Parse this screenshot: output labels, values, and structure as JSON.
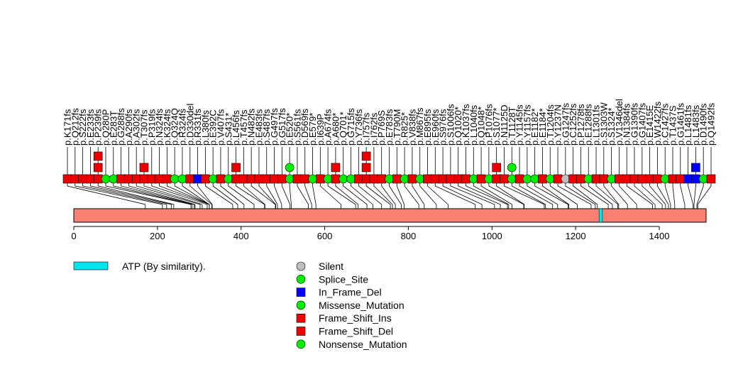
{
  "chart_data": {
    "type": "lollipop",
    "xlim": [
      0,
      1512
    ],
    "x_ticks": [
      0,
      200,
      400,
      600,
      800,
      1000,
      1200,
      1400
    ],
    "protein_length": 1512,
    "domains": [
      {
        "name": "ATP (By similarity).",
        "start": 1256,
        "end": 1264,
        "color": "#00e5ee"
      }
    ],
    "legend": [
      {
        "label": "ATP (By similarity).",
        "kind": "domain",
        "color": "#00e5ee"
      },
      {
        "label": "Silent",
        "kind": "circle",
        "color": "#bebebe"
      },
      {
        "label": "Splice_Site",
        "kind": "circle",
        "color": "#00ee00"
      },
      {
        "label": "In_Frame_Del",
        "kind": "square",
        "color": "#0000ff"
      },
      {
        "label": "Missense_Mutation",
        "kind": "circle",
        "color": "#00ee00"
      },
      {
        "label": "Frame_Shift_Ins",
        "kind": "square",
        "color": "#ee0000"
      },
      {
        "label": "Frame_Shift_Del",
        "kind": "square",
        "color": "#ee0000"
      },
      {
        "label": "Nonsense_Mutation",
        "kind": "circle",
        "color": "#00ee00"
      }
    ],
    "type_colors": {
      "Silent": "#bebebe",
      "Splice_Site": "#00ee00",
      "In_Frame_Del": "#0000ff",
      "Missense_Mutation": "#00ee00",
      "Frame_Shift_Ins": "#ee0000",
      "Frame_Shift_Del": "#ee0000",
      "Nonsense_Mutation": "#00ee00"
    },
    "mutations": [
      {
        "label": "p.K171fs",
        "pos": 171,
        "marks": [
          "Frame_Shift_Del"
        ]
      },
      {
        "label": "p.Q212fs",
        "pos": 212,
        "marks": [
          "Frame_Shift_Del"
        ]
      },
      {
        "label": "p.S222fs",
        "pos": 222,
        "marks": [
          "Frame_Shift_Del"
        ]
      },
      {
        "label": "p.E233fs",
        "pos": 233,
        "marks": [
          "Frame_Shift_Del"
        ]
      },
      {
        "label": "p.P239fs",
        "pos": 239,
        "marks": [
          "Frame_Shift_Del",
          "Frame_Shift_Ins",
          "Frame_Shift_Ins"
        ]
      },
      {
        "label": "p.Q280P",
        "pos": 280,
        "marks": [
          "Missense_Mutation"
        ]
      },
      {
        "label": "p.E283T",
        "pos": 283,
        "marks": [
          "Missense_Mutation"
        ]
      },
      {
        "label": "p.G288fs",
        "pos": 288,
        "marks": [
          "Frame_Shift_Del"
        ]
      },
      {
        "label": "p.A290fs",
        "pos": 290,
        "marks": [
          "Frame_Shift_Del"
        ]
      },
      {
        "label": "p.A302fs",
        "pos": 302,
        "marks": [
          "Frame_Shift_Del"
        ]
      },
      {
        "label": "p.T307fs",
        "pos": 307,
        "marks": [
          "Frame_Shift_Del",
          "Frame_Shift_Ins"
        ]
      },
      {
        "label": "p.P319fs",
        "pos": 319,
        "marks": [
          "Frame_Shift_Del"
        ]
      },
      {
        "label": "p.N324fs",
        "pos": 324,
        "marks": [
          "Frame_Shift_Del"
        ]
      },
      {
        "label": "p.K324fs",
        "pos": 324,
        "marks": [
          "Frame_Shift_Del"
        ]
      },
      {
        "label": "p.Q324Q",
        "pos": 324,
        "marks": [
          "Splice_Site"
        ]
      },
      {
        "label": "p.R324fs",
        "pos": 324,
        "marks": [
          "Splice_Site"
        ]
      },
      {
        "label": "p.D330del",
        "pos": 330,
        "marks": [
          "Frame_Shift_Del"
        ]
      },
      {
        "label": "p.R331fs",
        "pos": 331,
        "marks": [
          "In_Frame_Del"
        ]
      },
      {
        "label": "p.L380fs",
        "pos": 380,
        "marks": [
          "Frame_Shift_Del"
        ]
      },
      {
        "label": "p.E392C",
        "pos": 392,
        "marks": [
          "Missense_Mutation"
        ]
      },
      {
        "label": "p.V407fs",
        "pos": 407,
        "marks": [
          "Frame_Shift_Del"
        ]
      },
      {
        "label": "p.S431*",
        "pos": 431,
        "marks": [
          "Nonsense_Mutation"
        ]
      },
      {
        "label": "p.L456fs",
        "pos": 456,
        "marks": [
          "Frame_Shift_Del",
          "Frame_Shift_Ins"
        ]
      },
      {
        "label": "p.T457fs",
        "pos": 457,
        "marks": [
          "Frame_Shift_Del"
        ]
      },
      {
        "label": "p.N482fs",
        "pos": 482,
        "marks": [
          "Frame_Shift_Del"
        ]
      },
      {
        "label": "p.E483fs",
        "pos": 483,
        "marks": [
          "Frame_Shift_Del"
        ]
      },
      {
        "label": "p.S487fs",
        "pos": 487,
        "marks": [
          "Frame_Shift_Del"
        ]
      },
      {
        "label": "p.G497fs",
        "pos": 497,
        "marks": [
          "Frame_Shift_Del"
        ]
      },
      {
        "label": "p.G517fs",
        "pos": 517,
        "marks": [
          "Frame_Shift_Del"
        ]
      },
      {
        "label": "p.E520*",
        "pos": 520,
        "marks": [
          "Nonsense_Mutation",
          "Missense_Mutation"
        ]
      },
      {
        "label": "p.S561fs",
        "pos": 561,
        "marks": [
          "Frame_Shift_Del"
        ]
      },
      {
        "label": "p.D569fs",
        "pos": 569,
        "marks": [
          "Frame_Shift_Del"
        ]
      },
      {
        "label": "p.E579*",
        "pos": 579,
        "marks": [
          "Nonsense_Mutation"
        ]
      },
      {
        "label": "p.I639P",
        "pos": 639,
        "marks": [
          "Frame_Shift_Del"
        ]
      },
      {
        "label": "p.A674fs",
        "pos": 674,
        "marks": [
          "Missense_Mutation"
        ]
      },
      {
        "label": "p.A680*",
        "pos": 680,
        "marks": [
          "Frame_Shift_Del",
          "Frame_Shift_Ins"
        ]
      },
      {
        "label": "p.Q701*",
        "pos": 701,
        "marks": [
          "Nonsense_Mutation"
        ]
      },
      {
        "label": "p.G715fs",
        "pos": 715,
        "marks": [
          "Nonsense_Mutation"
        ]
      },
      {
        "label": "p.Y736fs",
        "pos": 736,
        "marks": [
          "Frame_Shift_Del"
        ]
      },
      {
        "label": "p.I757fs",
        "pos": 757,
        "marks": [
          "Frame_Shift_Del",
          "Frame_Shift_Ins",
          "Frame_Shift_Ins"
        ]
      },
      {
        "label": "p.I762fs",
        "pos": 762,
        "marks": [
          "Frame_Shift_Del"
        ]
      },
      {
        "label": "p.P769S",
        "pos": 769,
        "marks": [
          "Frame_Shift_Del"
        ]
      },
      {
        "label": "p.E783fs",
        "pos": 783,
        "marks": [
          "Splice_Site"
        ]
      },
      {
        "label": "p.T790M",
        "pos": 790,
        "marks": [
          "Frame_Shift_Del"
        ]
      },
      {
        "label": "p.R825*",
        "pos": 825,
        "marks": [
          "Missense_Mutation"
        ]
      },
      {
        "label": "p.V838fs",
        "pos": 838,
        "marks": [
          "Frame_Shift_Del"
        ]
      },
      {
        "label": "p.M867fs",
        "pos": 867,
        "marks": [
          "Nonsense_Mutation"
        ]
      },
      {
        "label": "p.E895fs",
        "pos": 895,
        "marks": [
          "Frame_Shift_Del"
        ]
      },
      {
        "label": "p.E960fs",
        "pos": 960,
        "marks": [
          "Frame_Shift_Del"
        ]
      },
      {
        "label": "p.S976fs",
        "pos": 976,
        "marks": [
          "Frame_Shift_Del"
        ]
      },
      {
        "label": "p.S1006fs",
        "pos": 1006,
        "marks": [
          "Frame_Shift_Del"
        ]
      },
      {
        "label": "p.Q1020*",
        "pos": 1020,
        "marks": [
          "Frame_Shift_Del"
        ]
      },
      {
        "label": "p.K1037fs",
        "pos": 1037,
        "marks": [
          "Frame_Shift_Del"
        ]
      },
      {
        "label": "p.L1040fs",
        "pos": 1040,
        "marks": [
          "Nonsense_Mutation"
        ]
      },
      {
        "label": "p.Q1048*",
        "pos": 1048,
        "marks": [
          "Frame_Shift_Del"
        ]
      },
      {
        "label": "p.P1076fs",
        "pos": 1076,
        "marks": [
          "Nonsense_Mutation"
        ]
      },
      {
        "label": "p.S1077*",
        "pos": 1077,
        "marks": [
          "Frame_Shift_Del",
          "Frame_Shift_Ins"
        ]
      },
      {
        "label": "p.N1125D",
        "pos": 1125,
        "marks": [
          "Frame_Shift_Del"
        ]
      },
      {
        "label": "p.T1128T",
        "pos": 1128,
        "marks": [
          "Nonsense_Mutation",
          "Missense_Mutation"
        ]
      },
      {
        "label": "p.Y1145fs",
        "pos": 1145,
        "marks": [
          "Frame_Shift_Del"
        ]
      },
      {
        "label": "p.Y1157fs",
        "pos": 1157,
        "marks": [
          "Missense_Mutation"
        ]
      },
      {
        "label": "p.E1182*",
        "pos": 1182,
        "marks": [
          "Nonsense_Mutation"
        ]
      },
      {
        "label": "p.E1184*",
        "pos": 1184,
        "marks": [
          "Frame_Shift_Del"
        ]
      },
      {
        "label": "p.T1204fs",
        "pos": 1204,
        "marks": [
          "Nonsense_Mutation"
        ]
      },
      {
        "label": "p.Y1237N",
        "pos": 1237,
        "marks": [
          "Frame_Shift_Del"
        ]
      },
      {
        "label": "p.G1247fs",
        "pos": 1247,
        "marks": [
          "Silent"
        ]
      },
      {
        "label": "p.C1252fs",
        "pos": 1252,
        "marks": [
          "Frame_Shift_Del"
        ]
      },
      {
        "label": "p.P1278fs",
        "pos": 1278,
        "marks": [
          "Frame_Shift_Del"
        ]
      },
      {
        "label": "p.E1288fs",
        "pos": 1288,
        "marks": [
          "Missense_Mutation"
        ]
      },
      {
        "label": "p.L1301fs",
        "pos": 1301,
        "marks": [
          "Frame_Shift_Del"
        ]
      },
      {
        "label": "p.S1303W",
        "pos": 1303,
        "marks": [
          "Frame_Shift_Del"
        ]
      },
      {
        "label": "p.S1324*",
        "pos": 1324,
        "marks": [
          "Nonsense_Mutation"
        ]
      },
      {
        "label": "p.V1346del",
        "pos": 1346,
        "marks": [
          "Frame_Shift_Del"
        ]
      },
      {
        "label": "p.N1384fs",
        "pos": 1384,
        "marks": [
          "Frame_Shift_Del"
        ]
      },
      {
        "label": "p.G1390fs",
        "pos": 1390,
        "marks": [
          "Frame_Shift_Del"
        ]
      },
      {
        "label": "p.G1407fs",
        "pos": 1407,
        "marks": [
          "Frame_Shift_Del"
        ]
      },
      {
        "label": "p.E1415E",
        "pos": 1415,
        "marks": [
          "Frame_Shift_Del"
        ]
      },
      {
        "label": "p.W1422fs",
        "pos": 1422,
        "marks": [
          "Frame_Shift_Del"
        ]
      },
      {
        "label": "p.C1427fs",
        "pos": 1427,
        "marks": [
          "Missense_Mutation"
        ]
      },
      {
        "label": "p.T1437S",
        "pos": 1437,
        "marks": [
          "Frame_Shift_Del"
        ]
      },
      {
        "label": "p.G1461fs",
        "pos": 1461,
        "marks": [
          "Frame_Shift_Del"
        ]
      },
      {
        "label": "p.L1481fs",
        "pos": 1481,
        "marks": [
          "In_Frame_Del"
        ]
      },
      {
        "label": "p.L1483fs",
        "pos": 1483,
        "marks": [
          "In_Frame_Del",
          "In_Frame_Del"
        ]
      },
      {
        "label": "p.D1490fs",
        "pos": 1490,
        "marks": [
          "Missense_Mutation"
        ]
      },
      {
        "label": "p.Q1492fs",
        "pos": 1492,
        "marks": [
          "Frame_Shift_Del"
        ]
      }
    ]
  }
}
